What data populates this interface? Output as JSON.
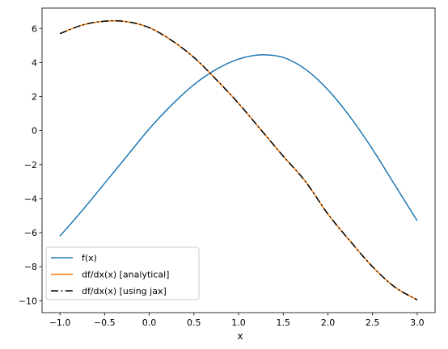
{
  "chart_data": {
    "type": "line",
    "title": "",
    "xlabel": "x",
    "ylabel": "",
    "xlim": [
      -1.2,
      3.2
    ],
    "ylim": [
      -10.7,
      7.2
    ],
    "xticks": [
      -1.0,
      -0.5,
      0.0,
      0.5,
      1.0,
      1.5,
      2.0,
      2.5,
      3.0
    ],
    "xtick_labels": [
      "−1.0",
      "−0.5",
      "0.0",
      "0.5",
      "1.0",
      "1.5",
      "2.0",
      "2.5",
      "3.0"
    ],
    "yticks": [
      -10,
      -8,
      -6,
      -4,
      -2,
      0,
      2,
      4,
      6
    ],
    "ytick_labels": [
      "−10",
      "−8",
      "−6",
      "−4",
      "−2",
      "0",
      "2",
      "4",
      "6"
    ],
    "grid": false,
    "legend_position": "lower-left",
    "x": [
      -1.0,
      -0.75,
      -0.5,
      -0.25,
      0.0,
      0.25,
      0.5,
      0.75,
      1.0,
      1.25,
      1.5,
      1.75,
      2.0,
      2.25,
      2.5,
      2.75,
      3.0
    ],
    "series": [
      {
        "name": "f(x)",
        "color": "#1f77b4",
        "style": "solid",
        "values": [
          -6.2,
          -4.7,
          -3.1,
          -1.5,
          0.1,
          1.5,
          2.7,
          3.6,
          4.2,
          4.45,
          4.3,
          3.6,
          2.4,
          0.8,
          -1.1,
          -3.2,
          -5.3
        ]
      },
      {
        "name": "df/dx(x) [analytical]",
        "color": "#ff7f0e",
        "style": "solid",
        "values": [
          5.7,
          6.2,
          6.43,
          6.4,
          6.05,
          5.3,
          4.3,
          3.0,
          1.6,
          0.05,
          -1.5,
          -3.0,
          -4.9,
          -6.5,
          -8.0,
          -9.2,
          -9.95
        ]
      },
      {
        "name": "df/dx(x) [using jax]",
        "color": "#000000",
        "style": "dashdot",
        "values": [
          5.7,
          6.2,
          6.43,
          6.4,
          6.05,
          5.3,
          4.3,
          3.0,
          1.6,
          0.05,
          -1.5,
          -3.0,
          -4.9,
          -6.5,
          -8.0,
          -9.2,
          -9.95
        ]
      }
    ]
  }
}
